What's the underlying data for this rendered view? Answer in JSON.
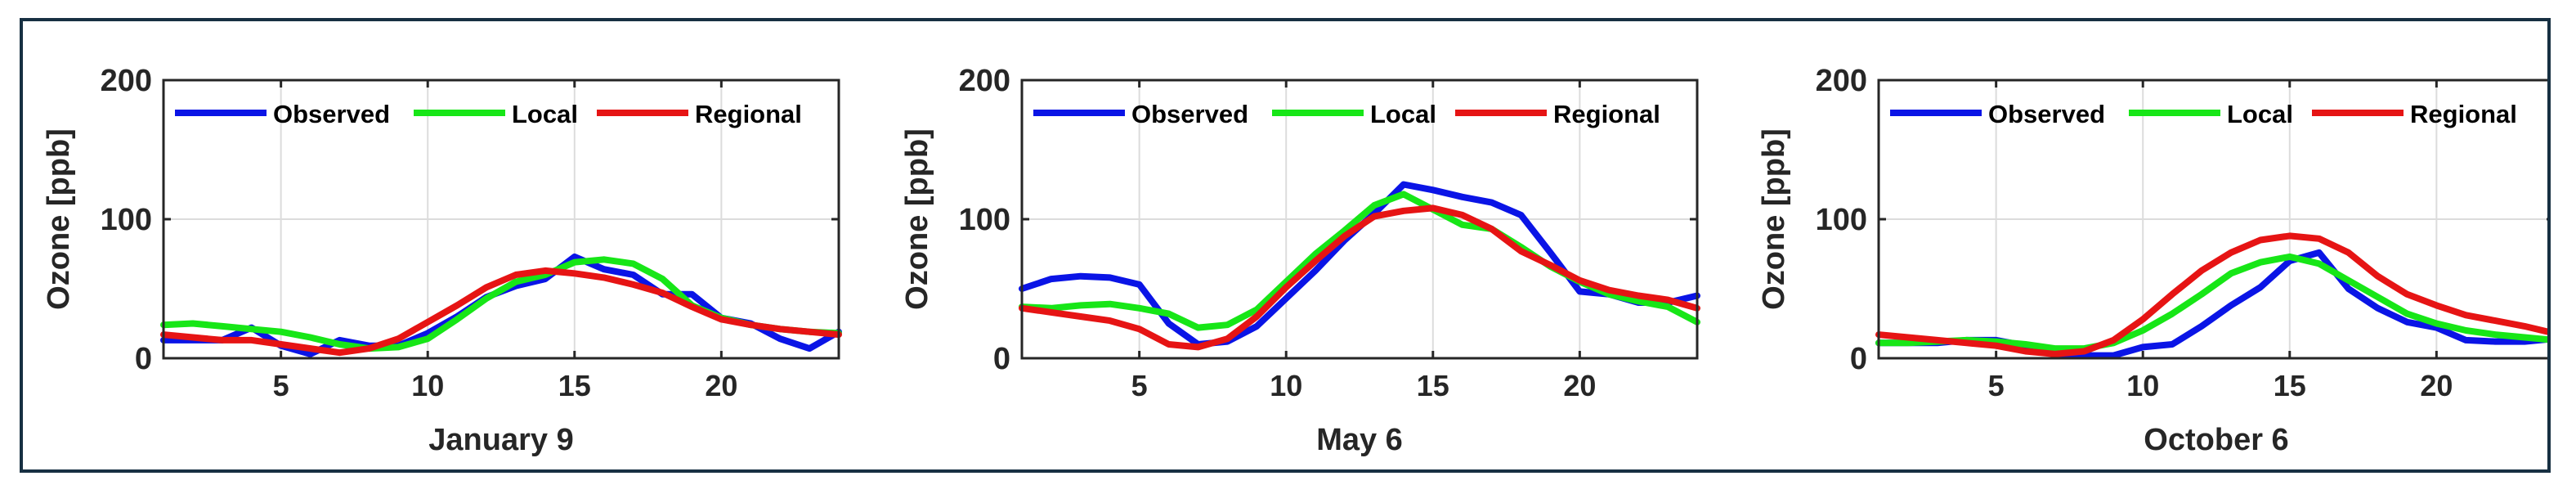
{
  "chart_data": [
    {
      "type": "line",
      "xlabel": "January 9",
      "ylabel": "Ozone [ppb]",
      "xlim": [
        1,
        24
      ],
      "ylim": [
        0,
        200
      ],
      "xticks": [
        5,
        10,
        15,
        20
      ],
      "yticks": [
        0,
        100,
        200
      ],
      "grid": true,
      "legend_position": "top",
      "x": [
        1,
        2,
        3,
        4,
        5,
        6,
        7,
        8,
        9,
        10,
        11,
        12,
        13,
        14,
        15,
        16,
        17,
        18,
        19,
        20,
        21,
        22,
        23,
        24
      ],
      "series": [
        {
          "name": "Observed",
          "color": "#0a14e6",
          "values": [
            13,
            13,
            13,
            22,
            9,
            3,
            13,
            9,
            9,
            18,
            30,
            44,
            52,
            57,
            73,
            64,
            60,
            46,
            46,
            29,
            25,
            14,
            7,
            19
          ]
        },
        {
          "name": "Local",
          "color": "#17e617",
          "values": [
            24,
            25,
            23,
            21,
            19,
            15,
            10,
            7,
            8,
            14,
            28,
            43,
            55,
            60,
            69,
            71,
            68,
            57,
            38,
            29,
            24,
            21,
            19,
            18
          ]
        },
        {
          "name": "Regional",
          "color": "#e61414",
          "values": [
            17,
            15,
            13,
            13,
            10,
            7,
            4,
            7,
            14,
            26,
            38,
            51,
            60,
            63,
            61,
            58,
            53,
            47,
            37,
            28,
            24,
            21,
            19,
            17
          ]
        }
      ]
    },
    {
      "type": "line",
      "xlabel": "May 6",
      "ylabel": "Ozone [ppb]",
      "xlim": [
        1,
        24
      ],
      "ylim": [
        0,
        200
      ],
      "xticks": [
        5,
        10,
        15,
        20
      ],
      "yticks": [
        0,
        100,
        200
      ],
      "grid": true,
      "legend_position": "top",
      "x": [
        1,
        2,
        3,
        4,
        5,
        6,
        7,
        8,
        9,
        10,
        11,
        12,
        13,
        14,
        15,
        16,
        17,
        18,
        19,
        20,
        21,
        22,
        23,
        24
      ],
      "series": [
        {
          "name": "Observed",
          "color": "#0a14e6",
          "values": [
            50,
            57,
            59,
            58,
            53,
            25,
            10,
            12,
            23,
            43,
            63,
            85,
            104,
            125,
            121,
            116,
            112,
            103,
            76,
            48,
            46,
            40,
            40,
            45
          ]
        },
        {
          "name": "Local",
          "color": "#17e617",
          "values": [
            37,
            36,
            38,
            39,
            36,
            32,
            22,
            24,
            35,
            55,
            75,
            92,
            110,
            118,
            107,
            96,
            93,
            80,
            66,
            55,
            46,
            41,
            37,
            26
          ]
        },
        {
          "name": "Regional",
          "color": "#e61414",
          "values": [
            36,
            33,
            30,
            27,
            21,
            10,
            8,
            14,
            30,
            51,
            70,
            88,
            102,
            106,
            108,
            103,
            93,
            77,
            67,
            56,
            49,
            45,
            42,
            36
          ]
        }
      ]
    },
    {
      "type": "line",
      "xlabel": "October 6",
      "ylabel": "Ozone [ppb]",
      "xlim": [
        1,
        24
      ],
      "ylim": [
        0,
        200
      ],
      "xticks": [
        5,
        10,
        15,
        20
      ],
      "yticks": [
        0,
        100,
        200
      ],
      "grid": true,
      "legend_position": "top",
      "x": [
        1,
        2,
        3,
        4,
        5,
        6,
        7,
        8,
        9,
        10,
        11,
        12,
        13,
        14,
        15,
        16,
        17,
        18,
        19,
        20,
        21,
        22,
        23,
        24
      ],
      "series": [
        {
          "name": "Observed",
          "color": "#0a14e6",
          "values": [
            11,
            11,
            11,
            13,
            13,
            9,
            3,
            2,
            2,
            8,
            10,
            23,
            38,
            51,
            70,
            76,
            50,
            36,
            26,
            22,
            13,
            12,
            12,
            14
          ]
        },
        {
          "name": "Local",
          "color": "#17e617",
          "values": [
            11,
            11,
            12,
            13,
            12,
            10,
            7,
            7,
            11,
            20,
            32,
            46,
            61,
            69,
            73,
            68,
            56,
            44,
            32,
            25,
            20,
            17,
            15,
            13
          ]
        },
        {
          "name": "Regional",
          "color": "#e61414",
          "values": [
            17,
            15,
            13,
            11,
            9,
            5,
            3,
            5,
            13,
            28,
            46,
            63,
            76,
            85,
            88,
            86,
            76,
            59,
            46,
            38,
            31,
            27,
            23,
            18
          ]
        }
      ]
    }
  ]
}
